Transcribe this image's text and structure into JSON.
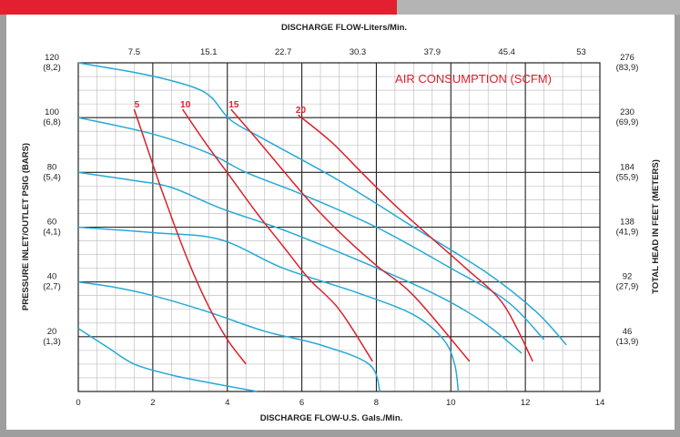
{
  "chart_data": {
    "type": "line",
    "title_top": "DISCHARGE FLOW-Liters/Min.",
    "xlabel": "DISCHARGE FLOW-U.S. Gals./Min.",
    "ylabel_left": "PRESSURE INLET/OUTLET PSIG (BARS)",
    "ylabel_right": "TOTAL HEAD IN FEET (METERS)",
    "annotation": "AIR CONSUMPTION (SCFM)",
    "xlim": [
      0,
      14
    ],
    "ylim": [
      0,
      120
    ],
    "grid": true,
    "x_ticks": [
      {
        "value": 0,
        "label": "0"
      },
      {
        "value": 2,
        "label": "2"
      },
      {
        "value": 4,
        "label": "4"
      },
      {
        "value": 6,
        "label": "6"
      },
      {
        "value": 8,
        "label": "8"
      },
      {
        "value": 10,
        "label": "10"
      },
      {
        "value": 12,
        "label": "12"
      },
      {
        "value": 14,
        "label": "14"
      }
    ],
    "x_top_ticks": [
      {
        "value": 1.5,
        "label": "7.5"
      },
      {
        "value": 3.5,
        "label": "15.1"
      },
      {
        "value": 5.5,
        "label": "22.7"
      },
      {
        "value": 7.5,
        "label": "30.3"
      },
      {
        "value": 9.5,
        "label": "37.9"
      },
      {
        "value": 11.5,
        "label": "45.4"
      },
      {
        "value": 13.5,
        "label": "53"
      }
    ],
    "y_left_ticks": [
      {
        "value": 120,
        "psi": "120",
        "bar": "(8,2)"
      },
      {
        "value": 100,
        "psi": "100",
        "bar": "(6,8)"
      },
      {
        "value": 80,
        "psi": "80",
        "bar": "(5,4)"
      },
      {
        "value": 60,
        "psi": "60",
        "bar": "(4,1)"
      },
      {
        "value": 40,
        "psi": "40",
        "bar": "(2,7)"
      },
      {
        "value": 20,
        "psi": "20",
        "bar": "(1,3)"
      }
    ],
    "y_right_ticks": [
      {
        "value": 120,
        "ft": "276",
        "m": "(83,9)"
      },
      {
        "value": 100,
        "ft": "230",
        "m": "(69,9)"
      },
      {
        "value": 80,
        "ft": "184",
        "m": "(55,9)"
      },
      {
        "value": 60,
        "ft": "138",
        "m": "(41,9)"
      },
      {
        "value": 40,
        "ft": "92",
        "m": "(27,9)"
      },
      {
        "value": 20,
        "ft": "46",
        "m": "(13,9)"
      }
    ],
    "pressure_curves": {
      "color": "#27a9d6",
      "curves": [
        [
          [
            0,
            120
          ],
          [
            1.5,
            116.5
          ],
          [
            2.5,
            113.5
          ],
          [
            3.2,
            110.5
          ],
          [
            3.6,
            107
          ],
          [
            4.1,
            99
          ],
          [
            5,
            92
          ],
          [
            7,
            77
          ],
          [
            9,
            60
          ],
          [
            11,
            43
          ],
          [
            12.3,
            29
          ],
          [
            13.1,
            17
          ]
        ],
        [
          [
            0,
            100
          ],
          [
            2,
            94
          ],
          [
            3.5,
            87
          ],
          [
            4.5,
            80
          ],
          [
            6,
            72
          ],
          [
            8,
            60
          ],
          [
            10,
            45
          ],
          [
            11.5,
            33
          ],
          [
            12.5,
            19
          ]
        ],
        [
          [
            0,
            80
          ],
          [
            1.5,
            77
          ],
          [
            2.5,
            74.5
          ],
          [
            3.8,
            67
          ],
          [
            5.5,
            59
          ],
          [
            7.5,
            48
          ],
          [
            9.5,
            36
          ],
          [
            10.8,
            26
          ],
          [
            11.9,
            14
          ]
        ],
        [
          [
            0,
            60
          ],
          [
            2,
            58
          ],
          [
            3.8,
            55.5
          ],
          [
            5.5,
            45
          ],
          [
            7.5,
            36
          ],
          [
            9,
            28
          ],
          [
            9.8,
            19
          ],
          [
            10.1,
            10
          ],
          [
            10.2,
            0
          ]
        ],
        [
          [
            0,
            40
          ],
          [
            1,
            38
          ],
          [
            2,
            35
          ],
          [
            3.5,
            29
          ],
          [
            5,
            22
          ],
          [
            6.5,
            17
          ],
          [
            7.8,
            10
          ],
          [
            8.1,
            0
          ]
        ],
        [
          [
            0,
            23
          ],
          [
            0.8,
            16
          ],
          [
            1.5,
            10
          ],
          [
            2.5,
            6
          ],
          [
            3.6,
            3
          ],
          [
            4.8,
            0
          ]
        ]
      ]
    },
    "air_consumption": {
      "color": "#d9232e",
      "series": [
        {
          "name": "5",
          "points": [
            [
              1.5,
              103
            ],
            [
              1.8,
              91
            ],
            [
              2.2,
              75
            ],
            [
              2.6,
              60
            ],
            [
              3.0,
              46
            ],
            [
              3.5,
              31
            ],
            [
              4.0,
              19
            ],
            [
              4.5,
              10
            ]
          ]
        },
        {
          "name": "10",
          "points": [
            [
              2.8,
              103
            ],
            [
              3.4,
              91
            ],
            [
              4.1,
              78
            ],
            [
              4.8,
              65
            ],
            [
              5.5,
              53
            ],
            [
              6.2,
              41
            ],
            [
              7.0,
              30
            ],
            [
              7.9,
              11
            ]
          ]
        },
        {
          "name": "15",
          "points": [
            [
              4.1,
              103
            ],
            [
              4.8,
              92
            ],
            [
              5.6,
              79
            ],
            [
              6.3,
              68
            ],
            [
              7.1,
              57
            ],
            [
              8.0,
              46
            ],
            [
              9.0,
              35
            ],
            [
              10.5,
              11
            ]
          ]
        },
        {
          "name": "20",
          "points": [
            [
              5.9,
              101
            ],
            [
              6.8,
              91
            ],
            [
              7.6,
              80
            ],
            [
              8.5,
              68
            ],
            [
              9.4,
              57
            ],
            [
              10.4,
              45
            ],
            [
              11.4,
              32
            ],
            [
              12.2,
              11
            ]
          ]
        }
      ]
    }
  }
}
